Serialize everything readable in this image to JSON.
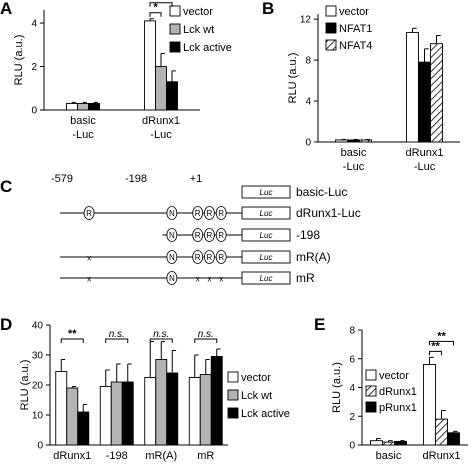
{
  "panels": {
    "A": "A",
    "B": "B",
    "C": "C",
    "D": "D",
    "E": "E"
  },
  "chart_data": [
    {
      "panel": "A",
      "type": "bar",
      "ylabel": "RLU (a.u.)",
      "ylim": [
        0,
        4.6
      ],
      "yticks": [
        0,
        2,
        4
      ],
      "categories": [
        "basic\n-Luc",
        "dRunx1\n-Luc"
      ],
      "series": [
        {
          "name": "vector",
          "color": "#ffffff",
          "pattern": "none",
          "values": [
            0.3,
            4.1
          ],
          "errors": [
            0.05,
            0.1
          ]
        },
        {
          "name": "Lck wt",
          "color": "#b3b3b3",
          "pattern": "none",
          "values": [
            0.3,
            2.0
          ],
          "errors": [
            0.05,
            0.6
          ]
        },
        {
          "name": "Lck active",
          "color": "#000000",
          "pattern": "none",
          "values": [
            0.3,
            1.3
          ],
          "errors": [
            0.05,
            0.5
          ]
        }
      ],
      "significance": [
        {
          "label": "**",
          "from": [
            1,
            0
          ],
          "to": [
            1,
            2
          ]
        },
        {
          "label": "*",
          "from": [
            1,
            0
          ],
          "to": [
            1,
            1
          ]
        }
      ]
    },
    {
      "panel": "B",
      "type": "bar",
      "ylabel": "RLU (a.u.)",
      "ylim": [
        0,
        12.5
      ],
      "yticks": [
        0,
        4,
        8,
        12
      ],
      "categories": [
        "basic\n-Luc",
        "dRunx1\n-Luc"
      ],
      "series": [
        {
          "name": "vector",
          "color": "#ffffff",
          "pattern": "none",
          "values": [
            0.2,
            10.7
          ],
          "errors": [
            0.05,
            0.4
          ]
        },
        {
          "name": "NFAT1",
          "color": "#000000",
          "pattern": "none",
          "values": [
            0.2,
            7.8
          ],
          "errors": [
            0.05,
            1.3
          ]
        },
        {
          "name": "NFAT4",
          "color": "#ffffff",
          "pattern": "hatch",
          "values": [
            0.2,
            9.6
          ],
          "errors": [
            0.05,
            0.8
          ]
        }
      ]
    },
    {
      "panel": "C",
      "type": "diagram",
      "positions": [
        "-579",
        "-198",
        "+1"
      ],
      "luc_label": "Luc",
      "constructs": [
        {
          "name": "basic-Luc",
          "line_start": null,
          "sites": []
        },
        {
          "name": "dRunx1-Luc",
          "line_start": -579,
          "sites": [
            {
              "type": "R",
              "mut": false,
              "pos": -480
            },
            {
              "type": "N",
              "mut": false,
              "pos": -198
            },
            {
              "type": "R",
              "mut": false,
              "pos": -110
            },
            {
              "type": "R",
              "mut": false,
              "pos": -70
            },
            {
              "type": "R",
              "mut": false,
              "pos": -30
            }
          ]
        },
        {
          "name": "-198",
          "line_start": -230,
          "sites": [
            {
              "type": "N",
              "mut": false,
              "pos": -198
            },
            {
              "type": "R",
              "mut": false,
              "pos": -110
            },
            {
              "type": "R",
              "mut": false,
              "pos": -70
            },
            {
              "type": "R",
              "mut": false,
              "pos": -30
            }
          ]
        },
        {
          "name": "mR(A)",
          "line_start": -579,
          "sites": [
            {
              "type": "x",
              "mut": true,
              "pos": -480
            },
            {
              "type": "N",
              "mut": false,
              "pos": -198
            },
            {
              "type": "R",
              "mut": false,
              "pos": -110
            },
            {
              "type": "R",
              "mut": false,
              "pos": -70
            },
            {
              "type": "R",
              "mut": false,
              "pos": -30
            }
          ]
        },
        {
          "name": "mR",
          "line_start": -579,
          "sites": [
            {
              "type": "x",
              "mut": true,
              "pos": -480
            },
            {
              "type": "N",
              "mut": false,
              "pos": -198
            },
            {
              "type": "x",
              "mut": true,
              "pos": -110
            },
            {
              "type": "x",
              "mut": true,
              "pos": -70
            },
            {
              "type": "x",
              "mut": true,
              "pos": -30
            }
          ]
        }
      ]
    },
    {
      "panel": "D",
      "type": "bar",
      "ylabel": "RLU (a.u.)",
      "ylim": [
        0,
        40
      ],
      "yticks": [
        0,
        10,
        20,
        30,
        40
      ],
      "categories": [
        "dRunx1",
        "-198",
        "mR(A)",
        "mR"
      ],
      "series": [
        {
          "name": "vector",
          "color": "#ffffff",
          "pattern": "none",
          "values": [
            24.5,
            19.5,
            22.5,
            22.5
          ],
          "errors": [
            4.0,
            5.5,
            12.0,
            7.5
          ]
        },
        {
          "name": "Lck wt",
          "color": "#b3b3b3",
          "pattern": "none",
          "values": [
            19.0,
            21.0,
            28.5,
            23.5
          ],
          "errors": [
            0.5,
            6.0,
            6.0,
            5.0
          ]
        },
        {
          "name": "Lck active",
          "color": "#000000",
          "pattern": "none",
          "values": [
            11.0,
            21.0,
            24.0,
            29.5
          ],
          "errors": [
            2.5,
            6.0,
            7.5,
            2.5
          ]
        }
      ],
      "significance": [
        {
          "label": "**",
          "from": [
            0,
            0
          ],
          "to": [
            0,
            2
          ]
        },
        {
          "label": "n.s.",
          "from": [
            1,
            0
          ],
          "to": [
            1,
            2
          ]
        },
        {
          "label": "n.s.",
          "from": [
            2,
            0
          ],
          "to": [
            2,
            2
          ]
        },
        {
          "label": "n.s.",
          "from": [
            3,
            0
          ],
          "to": [
            3,
            2
          ]
        }
      ]
    },
    {
      "panel": "E",
      "type": "bar",
      "ylabel": "RLU (a.u.)",
      "ylim": [
        0,
        8
      ],
      "yticks": [
        0,
        2,
        4,
        6,
        8
      ],
      "categories": [
        "basic",
        "dRunx1"
      ],
      "series": [
        {
          "name": "vector",
          "color": "#ffffff",
          "pattern": "none",
          "values": [
            0.3,
            5.6
          ],
          "errors": [
            0.15,
            0.5
          ]
        },
        {
          "name": "dRunx1",
          "color": "#ffffff",
          "pattern": "hatch",
          "values": [
            0.2,
            1.8
          ],
          "errors": [
            0.1,
            0.6
          ]
        },
        {
          "name": "pRunx1",
          "color": "#000000",
          "pattern": "none",
          "values": [
            0.25,
            0.85
          ],
          "errors": [
            0.05,
            0.1
          ]
        }
      ],
      "significance": [
        {
          "label": "**",
          "from": [
            1,
            0
          ],
          "to": [
            1,
            2
          ]
        },
        {
          "label": "**",
          "from": [
            1,
            0
          ],
          "to": [
            1,
            1
          ]
        }
      ]
    }
  ]
}
